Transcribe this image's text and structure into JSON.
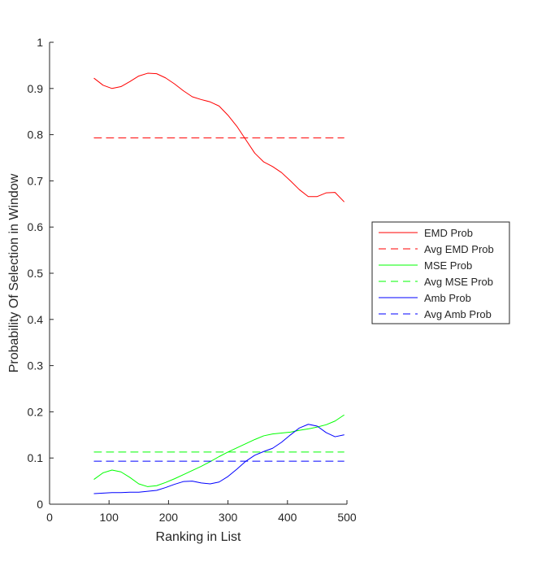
{
  "chart_data": {
    "type": "line",
    "title": "",
    "xlabel": "Ranking in List",
    "ylabel": "Probability Of Selection in Window",
    "xlim": [
      0,
      500
    ],
    "ylim": [
      0,
      1
    ],
    "xticks": [
      0,
      100,
      200,
      300,
      400,
      500
    ],
    "yticks": [
      0,
      0.1,
      0.2,
      0.3,
      0.4,
      0.5,
      0.6,
      0.7,
      0.8,
      0.9,
      1
    ],
    "xtick_labels": [
      "0",
      "100",
      "200",
      "300",
      "400",
      "500"
    ],
    "ytick_labels": [
      "0",
      "0.1",
      "0.2",
      "0.3",
      "0.4",
      "0.5",
      "0.6",
      "0.7",
      "0.8",
      "0.9",
      "1"
    ],
    "grid": false,
    "legend_position": "outside-right",
    "series": [
      {
        "name": "EMD Prob",
        "color": "#ff0000",
        "dash": "solid",
        "x": [
          75,
          90,
          105,
          120,
          135,
          150,
          165,
          180,
          195,
          210,
          225,
          240,
          255,
          270,
          285,
          300,
          315,
          330,
          345,
          360,
          375,
          390,
          405,
          420,
          435,
          450,
          465,
          480,
          495
        ],
        "y": [
          0.922,
          0.907,
          0.9,
          0.904,
          0.915,
          0.927,
          0.933,
          0.932,
          0.923,
          0.91,
          0.895,
          0.882,
          0.876,
          0.871,
          0.862,
          0.842,
          0.818,
          0.789,
          0.76,
          0.741,
          0.731,
          0.718,
          0.7,
          0.681,
          0.666,
          0.666,
          0.674,
          0.675,
          0.655
        ]
      },
      {
        "name": "Avg EMD Prob",
        "color": "#ff0000",
        "dash": "dashed",
        "x": [
          75,
          495
        ],
        "y": [
          0.793,
          0.793
        ]
      },
      {
        "name": "MSE Prob",
        "color": "#00ff00",
        "dash": "solid",
        "x": [
          75,
          90,
          105,
          120,
          135,
          150,
          165,
          180,
          195,
          210,
          225,
          240,
          255,
          270,
          285,
          300,
          315,
          330,
          345,
          360,
          375,
          390,
          405,
          420,
          435,
          450,
          465,
          480,
          495
        ],
        "y": [
          0.054,
          0.068,
          0.074,
          0.07,
          0.058,
          0.044,
          0.038,
          0.04,
          0.047,
          0.055,
          0.064,
          0.073,
          0.082,
          0.092,
          0.103,
          0.113,
          0.122,
          0.131,
          0.14,
          0.148,
          0.152,
          0.154,
          0.156,
          0.16,
          0.163,
          0.167,
          0.172,
          0.18,
          0.193
        ]
      },
      {
        "name": "Avg MSE Prob",
        "color": "#00ff00",
        "dash": "dashed",
        "x": [
          75,
          495
        ],
        "y": [
          0.113,
          0.113
        ]
      },
      {
        "name": "Amb Prob",
        "color": "#0000ff",
        "dash": "solid",
        "x": [
          75,
          90,
          105,
          120,
          135,
          150,
          165,
          180,
          195,
          210,
          225,
          240,
          255,
          270,
          285,
          300,
          315,
          330,
          345,
          360,
          375,
          390,
          405,
          420,
          435,
          450,
          465,
          480,
          495
        ],
        "y": [
          0.023,
          0.024,
          0.025,
          0.025,
          0.026,
          0.026,
          0.028,
          0.03,
          0.036,
          0.043,
          0.049,
          0.05,
          0.046,
          0.044,
          0.048,
          0.06,
          0.076,
          0.093,
          0.106,
          0.114,
          0.121,
          0.134,
          0.15,
          0.165,
          0.173,
          0.169,
          0.155,
          0.146,
          0.15
        ]
      },
      {
        "name": "Avg Amb Prob",
        "color": "#0000ff",
        "dash": "dashed",
        "x": [
          75,
          495
        ],
        "y": [
          0.093,
          0.093
        ]
      }
    ]
  }
}
